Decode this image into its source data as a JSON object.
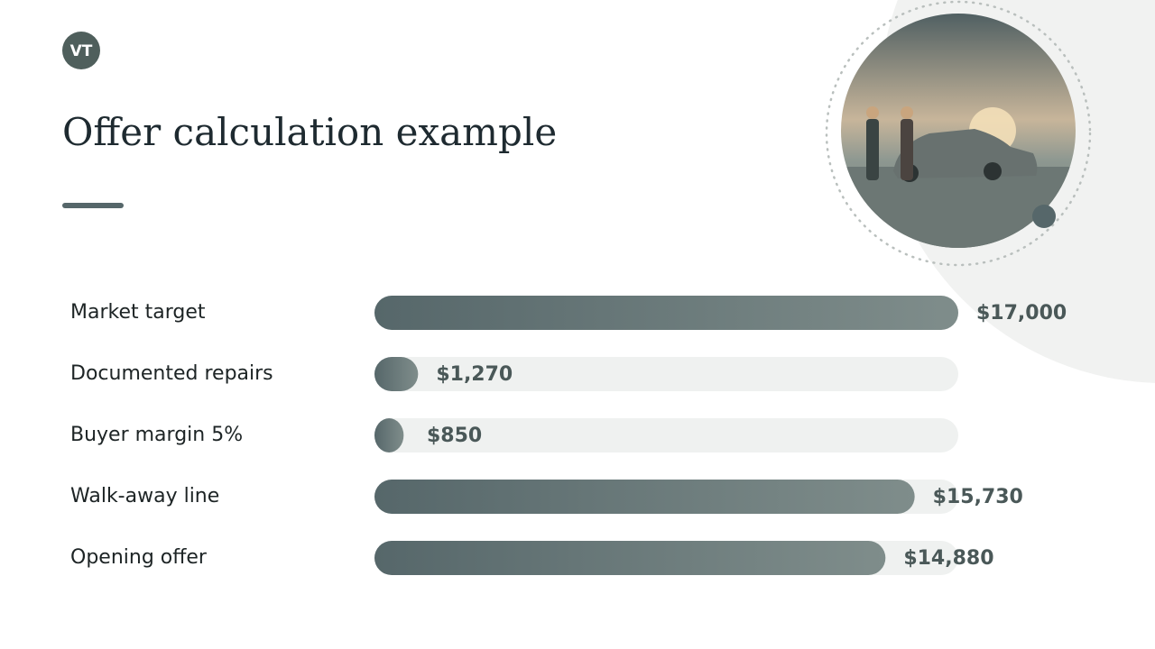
{
  "logo": "VT",
  "chart_data": {
    "type": "bar",
    "orientation": "horizontal",
    "title": "Offer calculation example",
    "categories": [
      "Market target",
      "Documented repairs",
      "Buyer margin 5%",
      "Walk-away line",
      "Opening offer"
    ],
    "values": [
      17000,
      1270,
      850,
      15730,
      14880
    ],
    "value_labels": [
      "$17,000",
      "$1,270",
      "$850",
      "$15,730",
      "$14,880"
    ],
    "color": "#56676a"
  }
}
